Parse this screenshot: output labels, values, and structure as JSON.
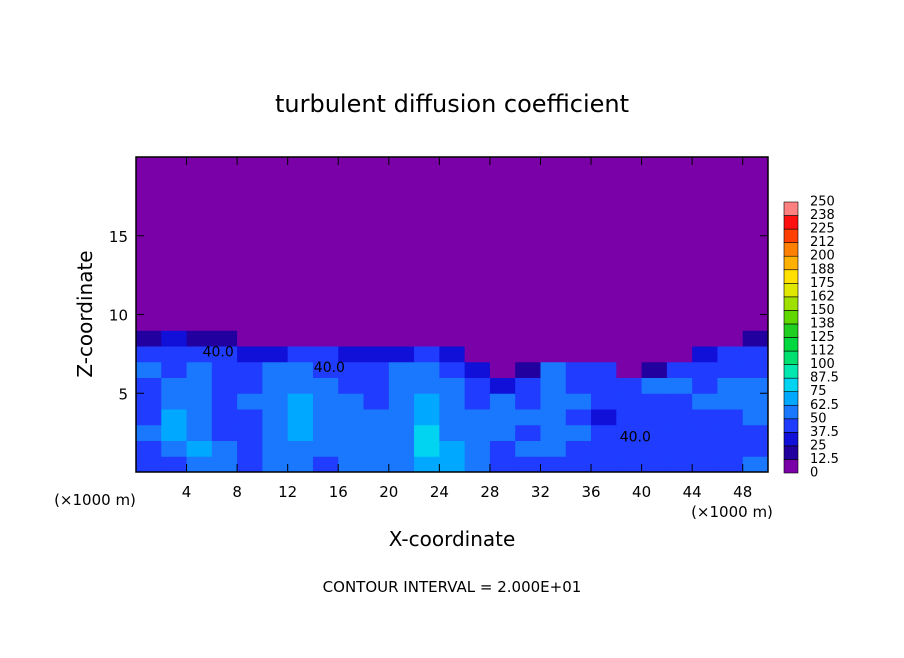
{
  "chart_data": {
    "type": "contour",
    "title": "turbulent diffusion coefficient",
    "x_label": "X-coordinate",
    "y_label": "Z-coordinate",
    "x_unit": "(×1000 m)",
    "y_unit": "(×1000 m)",
    "footer": "CONTOUR INTERVAL = 2.000E+01",
    "xlim": [
      0,
      50
    ],
    "ylim": [
      0,
      20
    ],
    "xticks": [
      4,
      8,
      12,
      16,
      20,
      24,
      28,
      32,
      36,
      40,
      44,
      48
    ],
    "yticks": [
      5,
      10,
      15
    ],
    "xbins": [
      0,
      2,
      4,
      6,
      8,
      10,
      12,
      14,
      16,
      18,
      20,
      22,
      24,
      26,
      28,
      30,
      32,
      34,
      36,
      38,
      40,
      42,
      44,
      46,
      48,
      50
    ],
    "ybins": [
      0,
      1,
      2,
      3,
      4,
      5,
      6,
      7,
      8,
      9,
      20
    ],
    "z": [
      [
        40,
        45,
        50,
        55,
        45,
        50,
        60,
        45,
        50,
        55,
        60,
        70,
        65,
        50,
        45,
        40,
        45,
        40,
        38,
        40,
        45,
        42,
        40,
        45,
        50
      ],
      [
        45,
        60,
        65,
        50,
        45,
        55,
        62,
        50,
        55,
        60,
        58,
        75,
        70,
        55,
        48,
        50,
        50,
        45,
        40,
        42,
        45,
        40,
        38,
        42,
        45
      ],
      [
        50,
        70,
        60,
        45,
        40,
        55,
        65,
        55,
        60,
        55,
        60,
        75,
        62,
        55,
        50,
        48,
        55,
        50,
        40,
        38,
        40,
        38,
        40,
        45,
        48
      ],
      [
        45,
        65,
        55,
        40,
        45,
        60,
        70,
        60,
        55,
        50,
        55,
        70,
        60,
        50,
        55,
        50,
        60,
        45,
        35,
        40,
        42,
        40,
        45,
        48,
        50
      ],
      [
        40,
        55,
        60,
        45,
        50,
        62,
        65,
        55,
        50,
        45,
        50,
        65,
        55,
        45,
        50,
        45,
        55,
        50,
        40,
        45,
        45,
        45,
        50,
        52,
        55
      ],
      [
        45,
        50,
        55,
        48,
        45,
        58,
        60,
        50,
        45,
        45,
        55,
        60,
        50,
        40,
        35,
        40,
        55,
        45,
        45,
        45,
        50,
        50,
        48,
        50,
        50
      ],
      [
        50,
        45,
        50,
        45,
        40,
        50,
        55,
        45,
        40,
        40,
        50,
        55,
        45,
        30,
        0,
        20,
        50,
        40,
        45,
        0,
        20,
        45,
        45,
        48,
        45
      ],
      [
        45,
        40,
        45,
        40,
        30,
        30,
        45,
        40,
        35,
        30,
        35,
        40,
        30,
        0,
        0,
        0,
        0,
        0,
        0,
        0,
        0,
        10,
        35,
        40,
        40
      ],
      [
        20,
        25,
        20,
        15,
        0,
        0,
        0,
        0,
        0,
        0,
        0,
        10,
        0,
        0,
        0,
        0,
        0,
        0,
        0,
        0,
        0,
        0,
        0,
        10,
        15
      ],
      [
        0,
        0,
        0,
        0,
        0,
        0,
        0,
        0,
        0,
        0,
        0,
        0,
        0,
        0,
        0,
        0,
        0,
        0,
        0,
        0,
        0,
        0,
        0,
        0,
        0
      ]
    ],
    "levels": [
      0,
      12.5,
      25,
      37.5,
      50,
      62.5,
      75,
      87.5,
      100,
      {
        "value": 112.5,
        "label": "112"
      },
      125,
      {
        "value": 137.5,
        "label": "138"
      },
      150,
      {
        "value": 162.5,
        "label": "162"
      },
      175,
      {
        "value": 187.5,
        "label": "188"
      },
      200,
      {
        "value": 212.5,
        "label": "212"
      },
      225,
      {
        "value": 237.5,
        "label": "238"
      },
      250
    ],
    "colors": [
      "#7a00a8",
      "#2200a0",
      "#1010d8",
      "#1f3cff",
      "#1a78ff",
      "#00a8ff",
      "#00d4f0",
      "#00e8b0",
      "#00e070",
      "#00d840",
      "#20d020",
      "#60d800",
      "#a0e000",
      "#e0e800",
      "#ffe000",
      "#ffb000",
      "#ff8000",
      "#ff4000",
      "#ff1010",
      "#ff8080"
    ],
    "annotations": [
      {
        "text": "40.0",
        "x": 6.5,
        "y": 7.6
      },
      {
        "text": "40.0",
        "x": 39.5,
        "y": 2.2
      },
      {
        "text": "40.0",
        "x": 15.3,
        "y": 6.6
      }
    ]
  }
}
